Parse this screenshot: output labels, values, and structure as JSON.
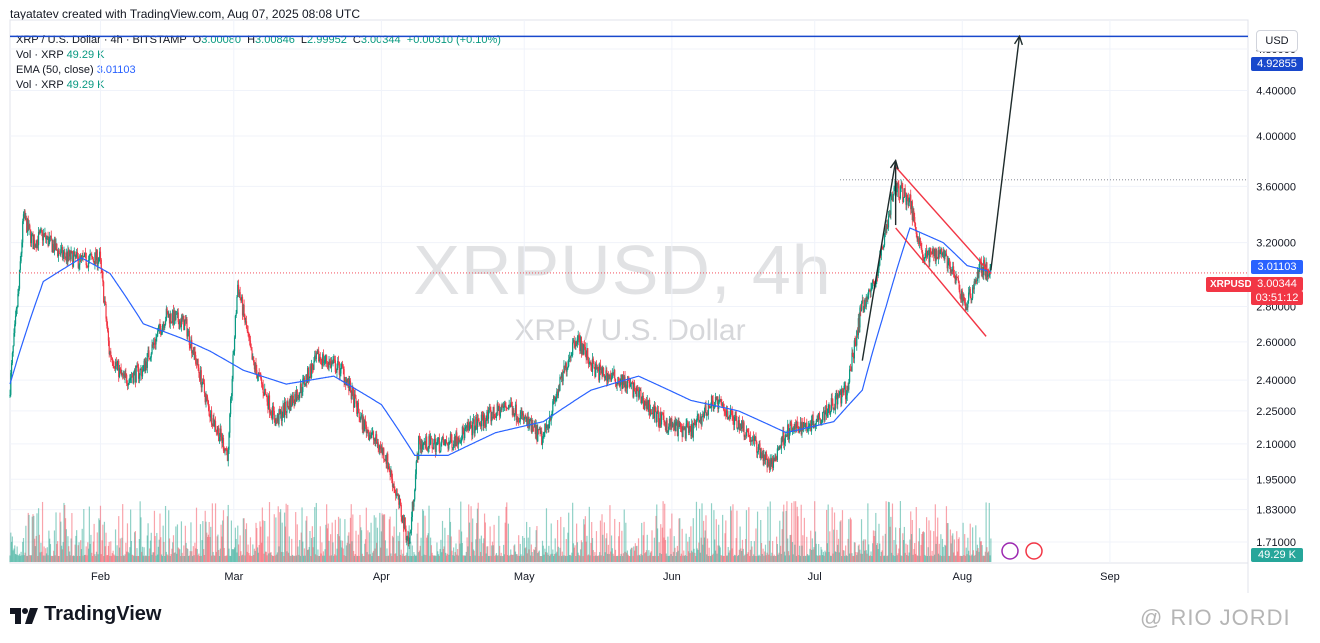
{
  "header": {
    "note": "tayatatev created with TradingView.com, Aug 07, 2025 08:08 UTC"
  },
  "legend": {
    "symbol_line": "XRP / U.S. Dollar · 4h · BITSTAMP",
    "ohlc": {
      "O": "3.00080",
      "H": "3.00846",
      "L": "2.99952",
      "C": "3.00344",
      "change": "+0.00310 (+0.10%)"
    },
    "vol_label": "Vol · XRP",
    "vol_value": "49.29 K",
    "ema_label": "EMA (50, close)",
    "ema_value": "3.01103"
  },
  "watermark": {
    "title": "XRPUSD, 4h",
    "subtitle": "XRP / U.S. Dollar"
  },
  "currency": "USD",
  "badges": {
    "target": "4.92855",
    "ema": "3.01103",
    "symbol": "XRPUSD",
    "price": "3.00344",
    "countdown": "03:51:12",
    "volume": "49.29 K"
  },
  "brand": {
    "name": "TradingView"
  },
  "credit": "@ RIO JORDI",
  "colors": {
    "up": "#089981",
    "down": "#f23645",
    "ema": "#2962ff",
    "target_line": "#1848cc",
    "arrow": "#1e2b2b"
  },
  "chart_data": {
    "type": "candlestick",
    "title": "XRPUSD, 4h",
    "symbol": "XRP / U.S. Dollar",
    "interval": "4h",
    "exchange": "BITSTAMP",
    "x_ticks": [
      "Feb",
      "Mar",
      "Apr",
      "May",
      "Jun",
      "Jul",
      "Aug",
      "Sep"
    ],
    "y_ticks": [
      1.71,
      1.83,
      1.95,
      2.1,
      2.25,
      2.4,
      2.6,
      2.8,
      3.2,
      3.6,
      4.0,
      4.4,
      4.8
    ],
    "y_scale": "log",
    "ylim": [
      1.64,
      5.1
    ],
    "last": {
      "open": 3.0008,
      "high": 3.00846,
      "low": 2.99952,
      "close": 3.00344
    },
    "ema50_last": 3.01103,
    "target": 4.92855,
    "volume_last_k": 49.29,
    "price_path": [
      [
        "Jan 13",
        2.32
      ],
      [
        "Jan 15",
        2.9
      ],
      [
        "Jan 16",
        3.38
      ],
      [
        "Jan 18",
        3.2
      ],
      [
        "Jan 20",
        3.25
      ],
      [
        "Jan 24",
        3.12
      ],
      [
        "Jan 28",
        3.08
      ],
      [
        "Feb 01",
        3.1
      ],
      [
        "Feb 03",
        2.55
      ],
      [
        "Feb 06",
        2.4
      ],
      [
        "Feb 10",
        2.45
      ],
      [
        "Feb 15",
        2.75
      ],
      [
        "Feb 19",
        2.7
      ],
      [
        "Feb 24",
        2.25
      ],
      [
        "Feb 28",
        2.05
      ],
      [
        "Mar 02",
        2.93
      ],
      [
        "Mar 05",
        2.5
      ],
      [
        "Mar 10",
        2.2
      ],
      [
        "Mar 15",
        2.35
      ],
      [
        "Mar 19",
        2.52
      ],
      [
        "Mar 24",
        2.45
      ],
      [
        "Mar 28",
        2.2
      ],
      [
        "Apr 02",
        2.05
      ],
      [
        "Apr 07",
        1.7
      ],
      [
        "Apr 09",
        2.1
      ],
      [
        "Apr 15",
        2.1
      ],
      [
        "Apr 22",
        2.2
      ],
      [
        "Apr 28",
        2.28
      ],
      [
        "May 05",
        2.12
      ],
      [
        "May 09",
        2.4
      ],
      [
        "May 12",
        2.63
      ],
      [
        "May 16",
        2.45
      ],
      [
        "May 23",
        2.38
      ],
      [
        "May 30",
        2.2
      ],
      [
        "Jun 05",
        2.15
      ],
      [
        "Jun 10",
        2.3
      ],
      [
        "Jun 16",
        2.18
      ],
      [
        "Jun 22",
        2.0
      ],
      [
        "Jun 25",
        2.15
      ],
      [
        "Jul 01",
        2.2
      ],
      [
        "Jul 08",
        2.35
      ],
      [
        "Jul 11",
        2.8
      ],
      [
        "Jul 14",
        2.95
      ],
      [
        "Jul 18",
        3.6
      ],
      [
        "Jul 21",
        3.5
      ],
      [
        "Jul 24",
        3.1
      ],
      [
        "Jul 28",
        3.15
      ],
      [
        "Aug 02",
        2.8
      ],
      [
        "Aug 05",
        3.05
      ],
      [
        "Aug 07",
        3.00344
      ]
    ],
    "ema_path": [
      [
        "Jan 13",
        2.38
      ],
      [
        "Jan 20",
        2.95
      ],
      [
        "Jan 28",
        3.1
      ],
      [
        "Feb 03",
        3.0
      ],
      [
        "Feb 10",
        2.7
      ],
      [
        "Feb 18",
        2.62
      ],
      [
        "Feb 24",
        2.55
      ],
      [
        "Mar 03",
        2.45
      ],
      [
        "Mar 12",
        2.38
      ],
      [
        "Mar 22",
        2.42
      ],
      [
        "Apr 01",
        2.28
      ],
      [
        "Apr 08",
        2.05
      ],
      [
        "Apr 15",
        2.05
      ],
      [
        "Apr 25",
        2.15
      ],
      [
        "May 05",
        2.2
      ],
      [
        "May 15",
        2.35
      ],
      [
        "May 25",
        2.42
      ],
      [
        "Jun 05",
        2.3
      ],
      [
        "Jun 15",
        2.25
      ],
      [
        "Jun 25",
        2.15
      ],
      [
        "Jul 05",
        2.2
      ],
      [
        "Jul 11",
        2.35
      ],
      [
        "Jul 16",
        2.8
      ],
      [
        "Jul 21",
        3.3
      ],
      [
        "Jul 28",
        3.2
      ],
      [
        "Aug 02",
        3.05
      ],
      [
        "Aug 07",
        3.01103
      ]
    ],
    "annotations": {
      "channel_upper": [
        [
          "Jul 18",
          3.75
        ],
        [
          "Aug 07",
          3.0
        ]
      ],
      "channel_lower": [
        [
          "Jul 18",
          3.3
        ],
        [
          "Aug 06",
          2.63
        ]
      ],
      "arrow_up": [
        [
          "Jul 11",
          2.5
        ],
        [
          "Jul 18",
          3.8
        ]
      ],
      "arrow_down": [
        [
          "Jul 18",
          3.8
        ],
        [
          "Jul 18",
          3.32
        ]
      ],
      "arrow_target": [
        [
          "Aug 07",
          3.02
        ],
        [
          "Aug 13",
          4.92855
        ]
      ]
    }
  }
}
